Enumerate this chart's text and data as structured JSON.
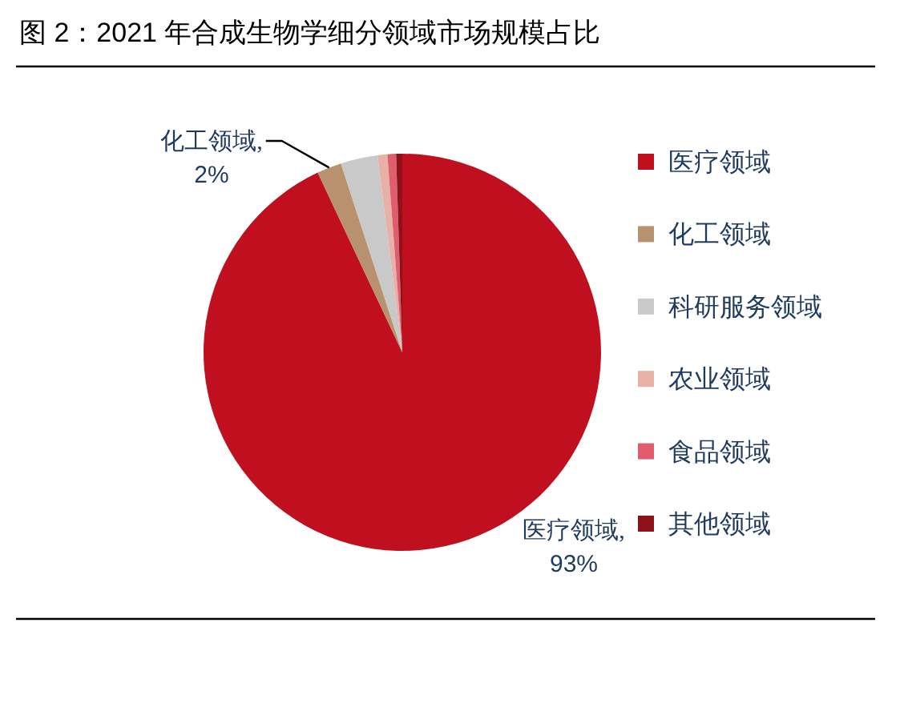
{
  "chart_data": {
    "type": "pie",
    "title": "图 2：2021 年合成生物学细分领域市场规模占比",
    "categories": [
      "医疗领域",
      "化工领域",
      "科研服务领域",
      "农业领域",
      "食品领域",
      "其他领域"
    ],
    "values": [
      93,
      2,
      3,
      0.8,
      0.7,
      0.5
    ],
    "colors": [
      "#c00f1e",
      "#b8926e",
      "#c9c9c9",
      "#e8b1a8",
      "#df5d6c",
      "#8e1219"
    ],
    "value_labels": [
      "医疗领域,\n93%",
      "化工领域,\n2%",
      null,
      null,
      null,
      null
    ],
    "legend": "right"
  }
}
